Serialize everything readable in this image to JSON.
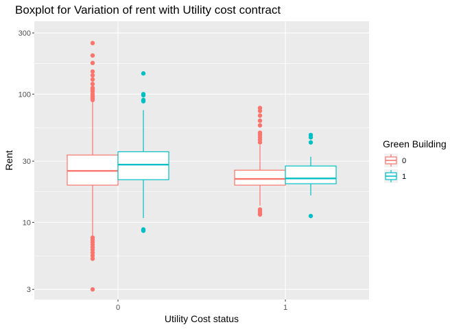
{
  "chart_data": {
    "type": "boxplot",
    "title": "Boxplot for Variation of rent with Utility cost contract",
    "xlabel": "Utility Cost status",
    "ylabel": "Rent",
    "y_scale": "log10",
    "ylim": [
      2.5,
      370
    ],
    "y_ticks": [
      3,
      10,
      30,
      100,
      300
    ],
    "categories": [
      "0",
      "1"
    ],
    "grid": true,
    "legend": {
      "title": "Green Building",
      "placement": "right",
      "entries": [
        "0",
        "1"
      ]
    },
    "series": [
      {
        "name": "0",
        "color": "#F8766D",
        "boxes": [
          {
            "category": "0",
            "whisker_low": 7.8,
            "q1": 19.5,
            "median": 25.2,
            "q3": 33.5,
            "whisker_high": 88,
            "outliers": [
              250,
              200,
              175,
              150,
              140,
              130,
              120,
              112,
              108,
              105,
              100,
              96,
              93,
              90,
              7.6,
              7.3,
              7.0,
              6.7,
              6.4,
              6.1,
              5.8,
              5.5,
              5.2,
              3.0
            ]
          },
          {
            "category": "1",
            "whisker_low": 13.5,
            "q1": 19.5,
            "median": 21.8,
            "q3": 25.5,
            "whisker_high": 40,
            "outliers": [
              78,
              74,
              68,
              62,
              57,
              50,
              48,
              46,
              44,
              42,
              12.6,
              12.2,
              11.8,
              11.5
            ]
          }
        ]
      },
      {
        "name": "1",
        "color": "#00BFC4",
        "boxes": [
          {
            "category": "0",
            "whisker_low": 10.8,
            "q1": 21.5,
            "median": 28.2,
            "q3": 35.5,
            "whisker_high": 75,
            "outliers": [
              145,
              100,
              98,
              90,
              88,
              8.6,
              8.8
            ]
          },
          {
            "category": "1",
            "whisker_low": 16.2,
            "q1": 20.0,
            "median": 22.0,
            "q3": 27.5,
            "whisker_high": 32.5,
            "outliers": [
              48,
              46,
              42,
              11.2
            ]
          }
        ]
      }
    ]
  }
}
